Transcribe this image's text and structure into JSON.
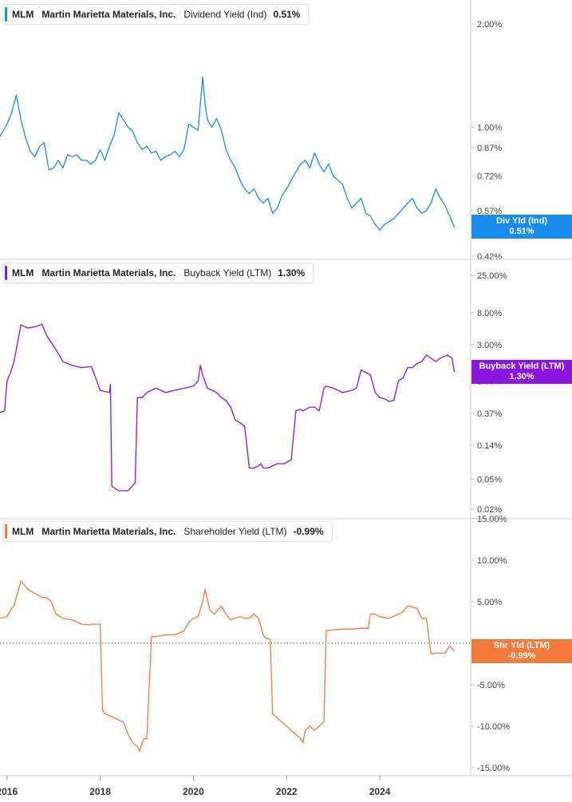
{
  "chart_data": [
    {
      "type": "line",
      "ticker": "MLM",
      "company": "Martin Marietta Materials, Inc.",
      "metric": "Dividend Yield (Ind)",
      "current_value": "0.51%",
      "tag_label": "Div Yld (Ind)",
      "tag_value": "0.51%",
      "color": "#1a8cf0",
      "y_scale": "log",
      "ylim": [
        0.42,
        2.3
      ],
      "y_ticks": [
        {
          "value": 2.0,
          "label": "2.00%"
        },
        {
          "value": 1.0,
          "label": "1.00%"
        },
        {
          "value": 0.87,
          "label": "0.87%"
        },
        {
          "value": 0.72,
          "label": "0.72%"
        },
        {
          "value": 0.57,
          "label": "0.57%"
        },
        {
          "value": 0.42,
          "label": "0.42%"
        }
      ],
      "x": [
        2015.85,
        2016.0,
        2016.1,
        2016.2,
        2016.3,
        2016.4,
        2016.5,
        2016.6,
        2016.7,
        2016.8,
        2016.9,
        2017.0,
        2017.1,
        2017.2,
        2017.3,
        2017.4,
        2017.5,
        2017.6,
        2017.7,
        2017.8,
        2017.9,
        2018.0,
        2018.1,
        2018.2,
        2018.3,
        2018.4,
        2018.5,
        2018.6,
        2018.7,
        2018.8,
        2018.9,
        2019.0,
        2019.1,
        2019.2,
        2019.3,
        2019.4,
        2019.5,
        2019.6,
        2019.7,
        2019.8,
        2019.9,
        2020.0,
        2020.1,
        2020.2,
        2020.25,
        2020.3,
        2020.4,
        2020.5,
        2020.6,
        2020.7,
        2020.8,
        2020.9,
        2021.0,
        2021.1,
        2021.2,
        2021.3,
        2021.4,
        2021.5,
        2021.6,
        2021.7,
        2021.8,
        2021.9,
        2022.0,
        2022.1,
        2022.2,
        2022.3,
        2022.4,
        2022.5,
        2022.6,
        2022.7,
        2022.8,
        2022.9,
        2023.0,
        2023.1,
        2023.2,
        2023.3,
        2023.4,
        2023.5,
        2023.6,
        2023.7,
        2023.8,
        2023.9,
        2024.0,
        2024.1,
        2024.2,
        2024.3,
        2024.4,
        2024.5,
        2024.6,
        2024.7,
        2024.8,
        2024.9,
        2025.0,
        2025.1,
        2025.2,
        2025.3,
        2025.4,
        2025.5,
        2025.6
      ],
      "values": [
        0.94,
        1.02,
        1.1,
        1.24,
        1.05,
        0.93,
        0.85,
        0.82,
        0.88,
        0.9,
        0.75,
        0.76,
        0.8,
        0.76,
        0.83,
        0.82,
        0.83,
        0.8,
        0.8,
        0.78,
        0.8,
        0.86,
        0.8,
        0.88,
        0.95,
        1.1,
        1.05,
        1.0,
        0.97,
        0.9,
        0.86,
        0.88,
        0.84,
        0.85,
        0.8,
        0.82,
        0.83,
        0.85,
        0.82,
        0.86,
        1.02,
        1.0,
        0.98,
        1.4,
        1.17,
        1.05,
        1.0,
        1.06,
        0.98,
        0.86,
        0.8,
        0.76,
        0.7,
        0.66,
        0.64,
        0.66,
        0.62,
        0.6,
        0.62,
        0.56,
        0.58,
        0.63,
        0.66,
        0.7,
        0.74,
        0.78,
        0.8,
        0.76,
        0.84,
        0.78,
        0.74,
        0.78,
        0.72,
        0.7,
        0.68,
        0.62,
        0.58,
        0.6,
        0.62,
        0.56,
        0.55,
        0.52,
        0.5,
        0.52,
        0.53,
        0.54,
        0.56,
        0.58,
        0.6,
        0.62,
        0.58,
        0.56,
        0.57,
        0.6,
        0.66,
        0.62,
        0.59,
        0.55,
        0.51
      ]
    },
    {
      "type": "line",
      "ticker": "MLM",
      "company": "Martin Marietta Materials, Inc.",
      "metric": "Buyback Yield (LTM)",
      "current_value": "1.30%",
      "tag_label": "Buyback Yield (LTM)",
      "tag_value": "1.30%",
      "color": "#8a14e0",
      "y_scale": "log",
      "ylim": [
        0.02,
        25.0
      ],
      "y_ticks": [
        {
          "value": 25.0,
          "label": "25.00%"
        },
        {
          "value": 8.0,
          "label": "8.00%"
        },
        {
          "value": 3.0,
          "label": "3.00%"
        },
        {
          "value": 1.0,
          "label": "1.00%"
        },
        {
          "value": 0.37,
          "label": "0.37%"
        },
        {
          "value": 0.14,
          "label": "0.14%"
        },
        {
          "value": 0.05,
          "label": "0.05%"
        },
        {
          "value": 0.02,
          "label": "0.02%"
        }
      ],
      "x": [
        2015.85,
        2015.95,
        2016.0,
        2016.08,
        2016.15,
        2016.3,
        2016.45,
        2016.6,
        2016.75,
        2016.85,
        2016.95,
        2017.05,
        2017.2,
        2017.4,
        2017.6,
        2017.8,
        2017.82,
        2018.0,
        2018.2,
        2018.22,
        2018.25,
        2018.4,
        2018.6,
        2018.75,
        2018.8,
        2018.82,
        2018.9,
        2019.0,
        2019.2,
        2019.4,
        2019.6,
        2019.8,
        2020.0,
        2020.1,
        2020.15,
        2020.2,
        2020.3,
        2020.4,
        2020.5,
        2020.6,
        2020.7,
        2020.8,
        2020.9,
        2021.0,
        2021.1,
        2021.2,
        2021.3,
        2021.4,
        2021.45,
        2021.5,
        2021.6,
        2021.8,
        2021.95,
        2022.1,
        2022.2,
        2022.3,
        2022.35,
        2022.5,
        2022.6,
        2022.7,
        2022.8,
        2022.85,
        2023.0,
        2023.2,
        2023.4,
        2023.5,
        2023.6,
        2023.8,
        2023.9,
        2024.0,
        2024.1,
        2024.2,
        2024.3,
        2024.4,
        2024.5,
        2024.6,
        2024.7,
        2024.8,
        2024.9,
        2025.0,
        2025.2,
        2025.3,
        2025.45,
        2025.55,
        2025.6
      ],
      "values": [
        0.38,
        0.4,
        1.0,
        1.3,
        1.8,
        5.5,
        5.0,
        5.2,
        5.6,
        4.0,
        3.2,
        2.6,
        1.8,
        1.6,
        1.5,
        1.55,
        1.5,
        0.75,
        0.7,
        0.9,
        0.04,
        0.035,
        0.035,
        0.045,
        0.6,
        0.6,
        0.6,
        0.7,
        0.8,
        0.7,
        0.75,
        0.8,
        0.85,
        1.0,
        1.6,
        1.2,
        0.8,
        0.75,
        0.7,
        0.6,
        0.55,
        0.45,
        0.3,
        0.28,
        0.25,
        0.07,
        0.07,
        0.075,
        0.08,
        0.07,
        0.07,
        0.08,
        0.08,
        0.09,
        0.4,
        0.42,
        0.4,
        0.45,
        0.45,
        0.4,
        0.8,
        0.85,
        0.8,
        0.7,
        0.75,
        0.8,
        1.4,
        1.2,
        0.7,
        0.6,
        0.58,
        0.53,
        0.55,
        1.0,
        1.1,
        1.5,
        1.5,
        1.7,
        1.8,
        2.2,
        1.8,
        2.0,
        2.2,
        2.0,
        1.3
      ]
    },
    {
      "type": "line",
      "ticker": "MLM",
      "company": "Martin Marietta Materials, Inc.",
      "metric": "Shareholder Yield (LTM)",
      "current_value": "-0.99%",
      "tag_label": "Shr Yld (LTM)",
      "tag_value": "-0.99%",
      "color": "#f47a3a",
      "y_scale": "linear",
      "ylim": [
        -15.0,
        15.0
      ],
      "y_ticks": [
        {
          "value": 15.0,
          "label": "15.00%"
        },
        {
          "value": 10.0,
          "label": "10.00%"
        },
        {
          "value": 5.0,
          "label": "5.00%"
        },
        {
          "value": 0.0,
          "label": "0.00%"
        },
        {
          "value": -5.0,
          "label": "-5.00%"
        },
        {
          "value": -10.0,
          "label": "-10.00%"
        },
        {
          "value": -15.0,
          "label": "-15.00%"
        }
      ],
      "x": [
        2015.85,
        2016.0,
        2016.08,
        2016.15,
        2016.3,
        2016.45,
        2016.6,
        2016.75,
        2016.85,
        2016.95,
        2017.05,
        2017.2,
        2017.4,
        2017.6,
        2017.8,
        2017.82,
        2018.0,
        2018.05,
        2018.1,
        2018.3,
        2018.5,
        2018.6,
        2018.7,
        2018.8,
        2018.85,
        2018.9,
        2018.95,
        2019.0,
        2019.1,
        2019.2,
        2019.4,
        2019.6,
        2019.8,
        2019.9,
        2020.0,
        2020.1,
        2020.2,
        2020.25,
        2020.35,
        2020.45,
        2020.6,
        2020.7,
        2020.8,
        2020.9,
        2021.0,
        2021.1,
        2021.2,
        2021.3,
        2021.4,
        2021.5,
        2021.55,
        2021.65,
        2021.7,
        2021.8,
        2021.9,
        2022.0,
        2022.1,
        2022.2,
        2022.3,
        2022.35,
        2022.4,
        2022.5,
        2022.6,
        2022.7,
        2022.8,
        2022.85,
        2023.0,
        2023.2,
        2023.4,
        2023.6,
        2023.75,
        2023.8,
        2023.9,
        2024.0,
        2024.2,
        2024.4,
        2024.5,
        2024.6,
        2024.8,
        2024.9,
        2025.0,
        2025.1,
        2025.2,
        2025.4,
        2025.5,
        2025.6
      ],
      "values": [
        3.0,
        3.2,
        4.0,
        4.5,
        7.5,
        6.5,
        6.0,
        5.5,
        5.5,
        5.0,
        3.5,
        3.0,
        2.8,
        2.3,
        2.2,
        2.3,
        2.3,
        -8.0,
        -8.5,
        -9.0,
        -9.5,
        -11.0,
        -12.0,
        -12.5,
        -13.0,
        -12.0,
        -11.5,
        -11.5,
        0.8,
        0.8,
        1.0,
        1.0,
        1.5,
        2.5,
        3.0,
        3.2,
        5.0,
        6.5,
        4.0,
        3.5,
        4.5,
        3.5,
        2.8,
        3.0,
        3.2,
        3.0,
        3.0,
        3.5,
        3.0,
        1.0,
        0.6,
        0.5,
        -8.5,
        -9.0,
        -9.5,
        -10.0,
        -10.5,
        -11.0,
        -11.5,
        -12.0,
        -10.5,
        -10.0,
        -10.5,
        -10.0,
        -9.5,
        1.5,
        1.6,
        1.7,
        1.7,
        1.8,
        1.8,
        3.5,
        3.5,
        3.2,
        3.0,
        3.5,
        3.8,
        4.5,
        4.2,
        3.0,
        3.0,
        -1.3,
        -1.2,
        -1.2,
        -0.3,
        -0.99
      ]
    }
  ],
  "x_axis": {
    "xlim": [
      2015.85,
      2025.95
    ],
    "ticks": [
      {
        "value": 2016,
        "label": "2016"
      },
      {
        "value": 2018,
        "label": "2018"
      },
      {
        "value": 2020,
        "label": "2020"
      },
      {
        "value": 2022,
        "label": "2022"
      },
      {
        "value": 2024,
        "label": "2024"
      }
    ]
  },
  "colors": {
    "grid": "#dddddd",
    "axis_text": "#444444",
    "zero_line": "#333333"
  }
}
